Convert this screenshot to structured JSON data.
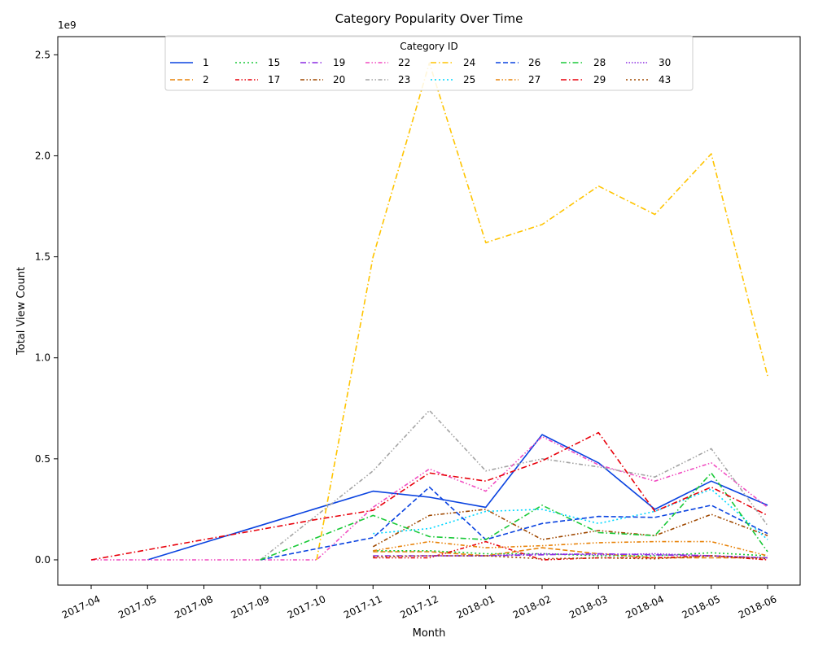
{
  "chart_data": {
    "type": "line",
    "title": "Category Popularity Over Time",
    "xlabel": "Month",
    "ylabel": "Total View Count",
    "y_offset_text": "1e9",
    "ylim": [
      -0.125,
      2.59
    ],
    "yticks": [
      0.0,
      0.5,
      1.0,
      1.5,
      2.0,
      2.5
    ],
    "ytick_labels": [
      "0.0",
      "0.5",
      "1.0",
      "1.5",
      "2.0",
      "2.5"
    ],
    "categories": [
      "2017-04",
      "2017-05",
      "2017-08",
      "2017-09",
      "2017-10",
      "2017-11",
      "2017-12",
      "2018-01",
      "2018-02",
      "2018-03",
      "2018-04",
      "2018-05",
      "2018-06"
    ],
    "grid": false,
    "legend": {
      "title": "Category ID",
      "placement": "upper center",
      "columns": 8
    },
    "series": [
      {
        "name": "1",
        "color": "#0a43e0",
        "dash": "solid",
        "values": [
          null,
          0.0,
          0.085,
          0.17,
          0.255,
          0.34,
          0.31,
          0.26,
          0.62,
          0.48,
          0.25,
          0.39,
          0.27
        ]
      },
      {
        "name": "2",
        "color": "#e8830a",
        "dash": "dash",
        "values": [
          null,
          null,
          null,
          null,
          null,
          0.04,
          0.04,
          0.02,
          0.06,
          0.03,
          0.01,
          0.01,
          0.01
        ]
      },
      {
        "name": "15",
        "color": "#1ac938",
        "dash": "dot",
        "values": [
          null,
          null,
          null,
          null,
          null,
          0.045,
          0.045,
          0.03,
          0.03,
          0.02,
          0.02,
          0.035,
          0.02
        ]
      },
      {
        "name": "17",
        "color": "#e8000b",
        "dash": "dashdot2",
        "values": [
          null,
          null,
          null,
          null,
          null,
          0.01,
          0.01,
          0.09,
          0.0,
          0.01,
          0.01,
          0.02,
          0.0
        ]
      },
      {
        "name": "19",
        "color": "#8b2be2",
        "dash": "dashdot",
        "values": [
          null,
          null,
          null,
          null,
          null,
          0.02,
          0.02,
          0.02,
          0.025,
          0.03,
          0.025,
          0.02,
          0.01
        ]
      },
      {
        "name": "20",
        "color": "#9f4800",
        "dash": "dashdot2",
        "values": [
          null,
          null,
          null,
          null,
          null,
          0.065,
          0.22,
          0.25,
          0.1,
          0.145,
          0.12,
          0.225,
          0.12
        ]
      },
      {
        "name": "22",
        "color": "#f14cc1",
        "dash": "dashdot2",
        "values": [
          0.0,
          0.0,
          0.0,
          0.0,
          0.0,
          0.26,
          0.45,
          0.34,
          0.61,
          0.47,
          0.39,
          0.48,
          0.26
        ]
      },
      {
        "name": "23",
        "color": "#a3a3a3",
        "dash": "dashdot2",
        "values": [
          null,
          null,
          null,
          0.0,
          0.22,
          0.44,
          0.74,
          0.44,
          0.5,
          0.46,
          0.41,
          0.55,
          0.17
        ]
      },
      {
        "name": "24",
        "color": "#ffc400",
        "dash": "dashdot",
        "values": [
          null,
          null,
          null,
          null,
          0.0,
          1.5,
          2.46,
          1.57,
          1.66,
          1.85,
          1.71,
          2.01,
          0.91
        ]
      },
      {
        "name": "25",
        "color": "#00d7ff",
        "dash": "dot",
        "values": [
          null,
          null,
          null,
          null,
          null,
          0.13,
          0.155,
          0.24,
          0.25,
          0.18,
          0.24,
          0.35,
          0.1
        ]
      },
      {
        "name": "26",
        "color": "#0a43e0",
        "dash": "dash",
        "values": [
          null,
          null,
          null,
          0.0,
          0.055,
          0.11,
          0.36,
          0.1,
          0.18,
          0.215,
          0.21,
          0.27,
          0.13
        ]
      },
      {
        "name": "27",
        "color": "#e8830a",
        "dash": "dashdot2",
        "values": [
          null,
          null,
          null,
          null,
          null,
          0.045,
          0.09,
          0.06,
          0.07,
          0.085,
          0.09,
          0.09,
          0.02
        ]
      },
      {
        "name": "28",
        "color": "#1ac938",
        "dash": "dashdot",
        "values": [
          null,
          null,
          null,
          0.0,
          0.11,
          0.22,
          0.115,
          0.1,
          0.27,
          0.135,
          0.12,
          0.43,
          0.04
        ]
      },
      {
        "name": "29",
        "color": "#e8000b",
        "dash": "dashdot",
        "values": [
          0.0,
          0.05,
          0.1,
          0.15,
          0.2,
          0.245,
          0.43,
          0.39,
          0.49,
          0.63,
          0.24,
          0.36,
          0.22
        ]
      },
      {
        "name": "30",
        "color": "#8b2be2",
        "dash": "dotfine",
        "values": [
          null,
          null,
          null,
          null,
          null,
          null,
          0.02,
          0.02,
          0.03,
          0.025,
          0.03,
          0.02,
          0.01
        ]
      },
      {
        "name": "43",
        "color": "#9f4800",
        "dash": "dot",
        "values": [
          null,
          null,
          null,
          null,
          null,
          0.015,
          0.02,
          0.02,
          0.005,
          0.01,
          0.005,
          0.02,
          0.005
        ]
      }
    ]
  }
}
